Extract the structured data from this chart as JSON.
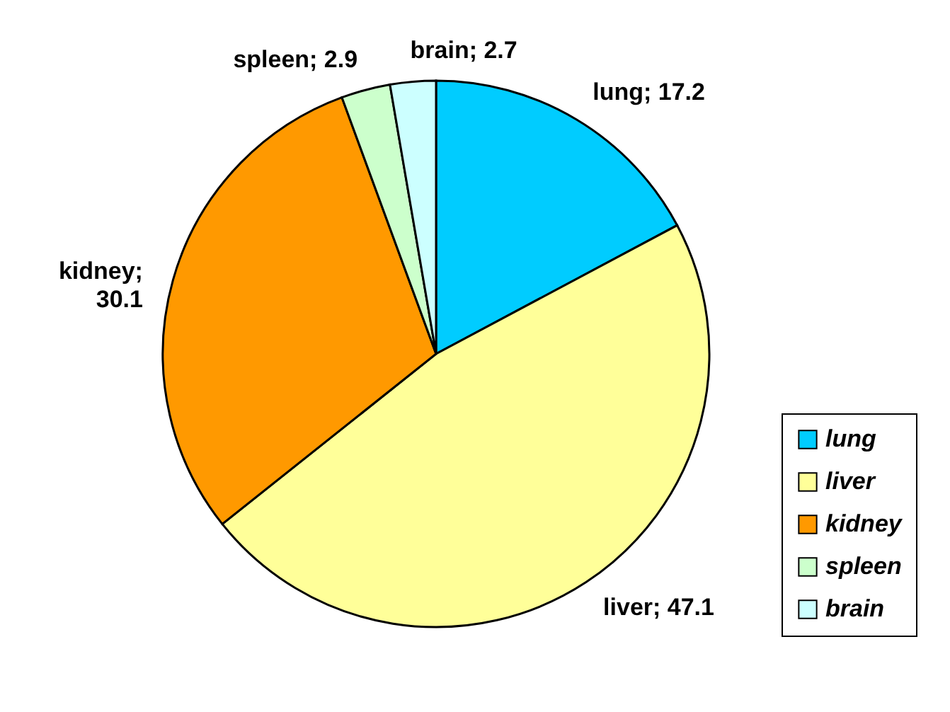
{
  "chart_data": {
    "type": "pie",
    "categories": [
      "lung",
      "liver",
      "kidney",
      "spleen",
      "brain"
    ],
    "values": [
      17.2,
      47.1,
      30.1,
      2.9,
      2.7
    ],
    "colors": [
      "#00ccff",
      "#ffff99",
      "#ff9900",
      "#ccffcc",
      "#ccffff"
    ],
    "value_labels": [
      "lung; 17.2",
      "liver; 47.1",
      "kidney; 30.1",
      "spleen; 2.9",
      "brain; 2.7"
    ],
    "legend": "bottom right"
  }
}
